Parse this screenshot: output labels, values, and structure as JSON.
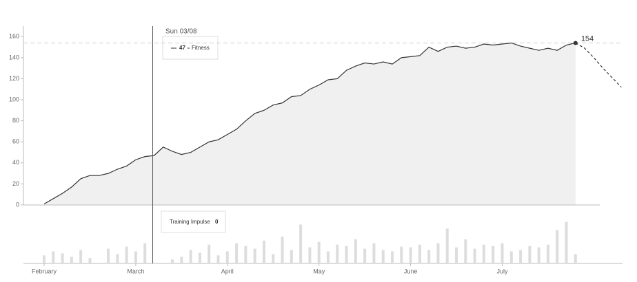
{
  "chart_data": {
    "type": "line",
    "categories": [
      "February",
      null,
      null,
      null,
      null,
      null,
      null,
      null,
      null,
      null,
      "March",
      null,
      null,
      null,
      null,
      null,
      null,
      null,
      null,
      null,
      "April",
      null,
      null,
      null,
      null,
      null,
      null,
      null,
      null,
      null,
      "May",
      null,
      null,
      null,
      null,
      null,
      null,
      null,
      null,
      null,
      "June",
      null,
      null,
      null,
      null,
      null,
      null,
      null,
      null,
      null,
      "July",
      null,
      null,
      null,
      null,
      null,
      null,
      null,
      null,
      null,
      null,
      null,
      null,
      null
    ],
    "series": [
      {
        "name": "Fitness",
        "color": "#333333",
        "values": [
          1,
          6,
          11,
          17,
          25,
          28,
          28,
          30,
          34,
          37,
          43,
          46,
          47,
          55,
          51,
          48,
          50,
          55,
          60,
          62,
          67,
          72,
          80,
          87,
          90,
          95,
          97,
          103,
          104,
          110,
          114,
          119,
          120,
          128,
          132,
          135,
          134,
          136,
          134,
          140,
          141,
          142,
          150,
          146,
          150,
          151,
          149,
          150,
          153,
          152,
          153,
          154,
          151,
          149,
          147,
          149,
          147,
          152,
          154,
          null,
          null,
          null,
          null,
          null
        ]
      },
      {
        "color": "#333333",
        "dashed": true,
        "values": [
          null,
          null,
          null,
          null,
          null,
          null,
          null,
          null,
          null,
          null,
          null,
          null,
          null,
          null,
          null,
          null,
          null,
          null,
          null,
          null,
          null,
          null,
          null,
          null,
          null,
          null,
          null,
          null,
          null,
          null,
          null,
          null,
          null,
          null,
          null,
          null,
          null,
          null,
          null,
          null,
          null,
          null,
          null,
          null,
          null,
          null,
          null,
          null,
          null,
          null,
          null,
          null,
          null,
          null,
          null,
          null,
          null,
          null,
          154,
          149,
          140,
          130,
          121,
          112
        ]
      }
    ],
    "ylim": [
      0,
      170
    ],
    "yticks": [
      0,
      20,
      40,
      60,
      80,
      100,
      120,
      140,
      160
    ],
    "fill": "#f0f0f0",
    "tooltip_date": "Sun 03/08",
    "impulse": {
      "name": "Training Impulse",
      "color": "#dddddd",
      "ylim": [
        0,
        80
      ],
      "values": [
        12,
        18,
        15,
        10,
        20,
        8,
        0,
        22,
        14,
        25,
        18,
        30,
        0,
        0,
        6,
        10,
        20,
        16,
        28,
        12,
        18,
        30,
        26,
        22,
        34,
        14,
        40,
        20,
        58,
        24,
        32,
        18,
        28,
        26,
        36,
        22,
        30,
        20,
        18,
        25,
        24,
        28,
        20,
        30,
        52,
        24,
        36,
        22,
        28,
        26,
        30,
        18,
        20,
        26,
        24,
        28,
        50,
        62,
        14,
        null,
        null,
        null,
        null,
        null
      ]
    }
  }
}
